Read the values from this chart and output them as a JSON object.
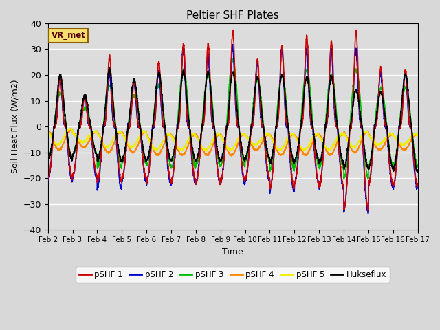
{
  "title": "Peltier SHF Plates",
  "xlabel": "Time",
  "ylabel": "Soil Heat Flux (W/m2)",
  "ylim": [
    -40,
    40
  ],
  "xlim": [
    0,
    15
  ],
  "fig_bg": "#d8d8d8",
  "plot_bg": "#dcdcdc",
  "annotation_text": "VR_met",
  "annotation_bg": "#f5e070",
  "annotation_border": "#8b6000",
  "x_tick_labels": [
    "Feb 2",
    "Feb 3",
    "Feb 4",
    "Feb 5",
    "Feb 6",
    "Feb 7",
    "Feb 8",
    "Feb 9",
    "Feb 10",
    "Feb 11",
    "Feb 12",
    "Feb 13",
    "Feb 14",
    "Feb 15",
    "Feb 16",
    "Feb 17"
  ],
  "line_colors": {
    "pSHF 1": "#cc0000",
    "pSHF 2": "#0000cc",
    "pSHF 3": "#00bb00",
    "pSHF 4": "#ff8800",
    "pSHF 5": "#eeee00",
    "Hukseflux": "#000000"
  }
}
